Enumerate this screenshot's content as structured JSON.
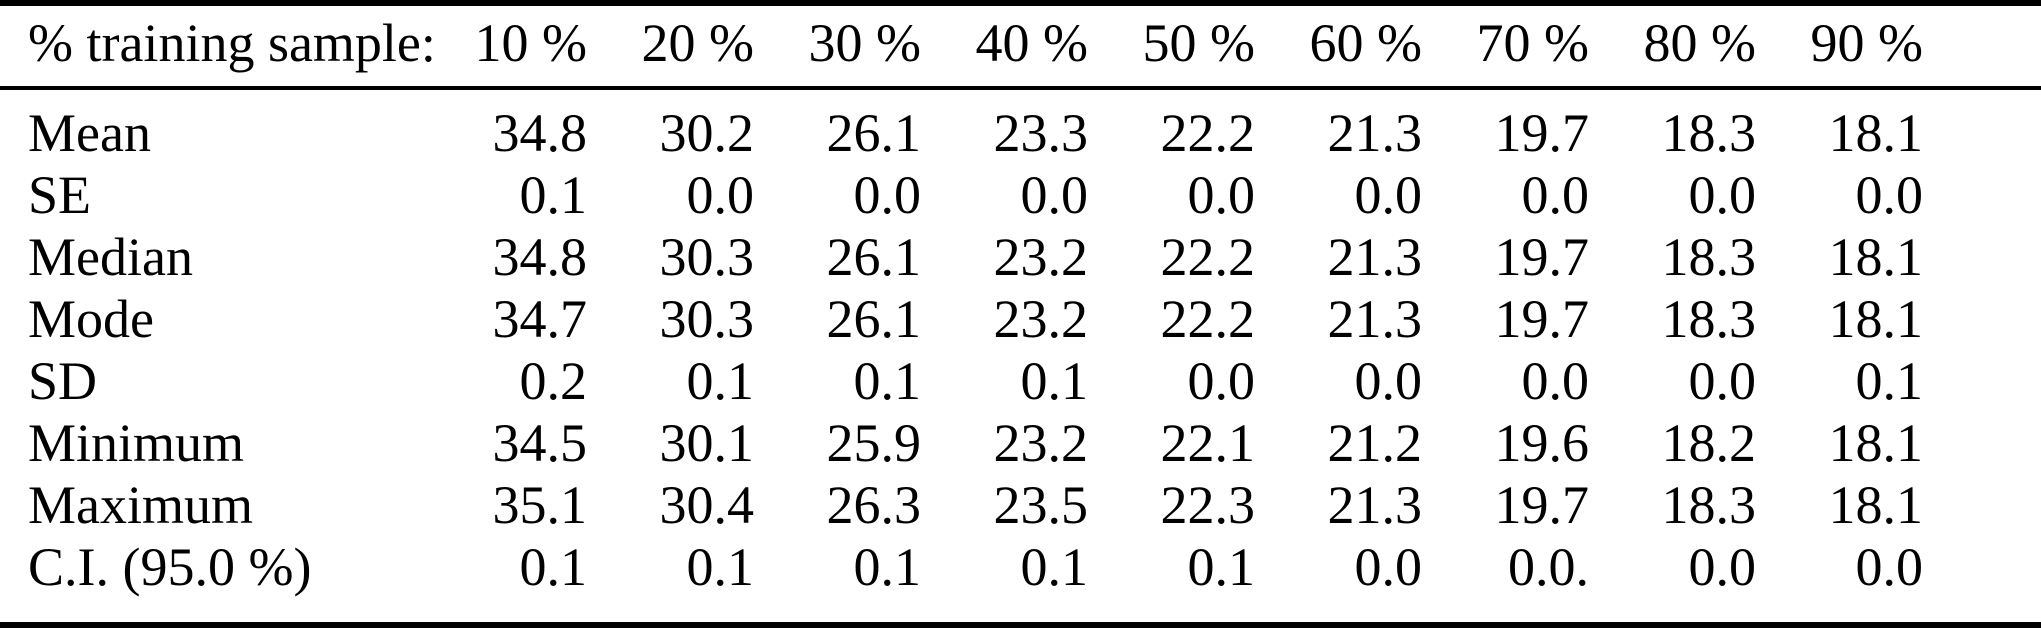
{
  "colors": {
    "background": "#ffffff",
    "text": "#000000",
    "rule": "#000000"
  },
  "table": {
    "header": {
      "label": "% training sample:",
      "columns": [
        "10 %",
        "20 %",
        "30 %",
        "40 %",
        "50 %",
        "60 %",
        "70 %",
        "80 %",
        "90 %"
      ]
    },
    "rows": [
      {
        "label": "Mean",
        "values": [
          "34.8",
          "30.2",
          "26.1",
          "23.3",
          "22.2",
          "21.3",
          "19.7",
          "18.3",
          "18.1"
        ]
      },
      {
        "label": "SE",
        "values": [
          "0.1",
          "0.0",
          "0.0",
          "0.0",
          "0.0",
          "0.0",
          "0.0",
          "0.0",
          "0.0"
        ]
      },
      {
        "label": "Median",
        "values": [
          "34.8",
          "30.3",
          "26.1",
          "23.2",
          "22.2",
          "21.3",
          "19.7",
          "18.3",
          "18.1"
        ]
      },
      {
        "label": "Mode",
        "values": [
          "34.7",
          "30.3",
          "26.1",
          "23.2",
          "22.2",
          "21.3",
          "19.7",
          "18.3",
          "18.1"
        ]
      },
      {
        "label": "SD",
        "values": [
          "0.2",
          "0.1",
          "0.1",
          "0.1",
          "0.0",
          "0.0",
          "0.0",
          "0.0",
          "0.1"
        ]
      },
      {
        "label": "Minimum",
        "values": [
          "34.5",
          "30.1",
          "25.9",
          "23.2",
          "22.1",
          "21.2",
          "19.6",
          "18.2",
          "18.1"
        ]
      },
      {
        "label": "Maximum",
        "values": [
          "35.1",
          "30.4",
          "26.3",
          "23.5",
          "22.3",
          "21.3",
          "19.7",
          "18.3",
          "18.1"
        ]
      },
      {
        "label": "C.I. (95.0 %)",
        "values": [
          "0.1",
          "0.1",
          "0.1",
          "0.1",
          "0.1",
          "0.0",
          "0.0.",
          "0.0",
          "0.0"
        ]
      }
    ]
  }
}
